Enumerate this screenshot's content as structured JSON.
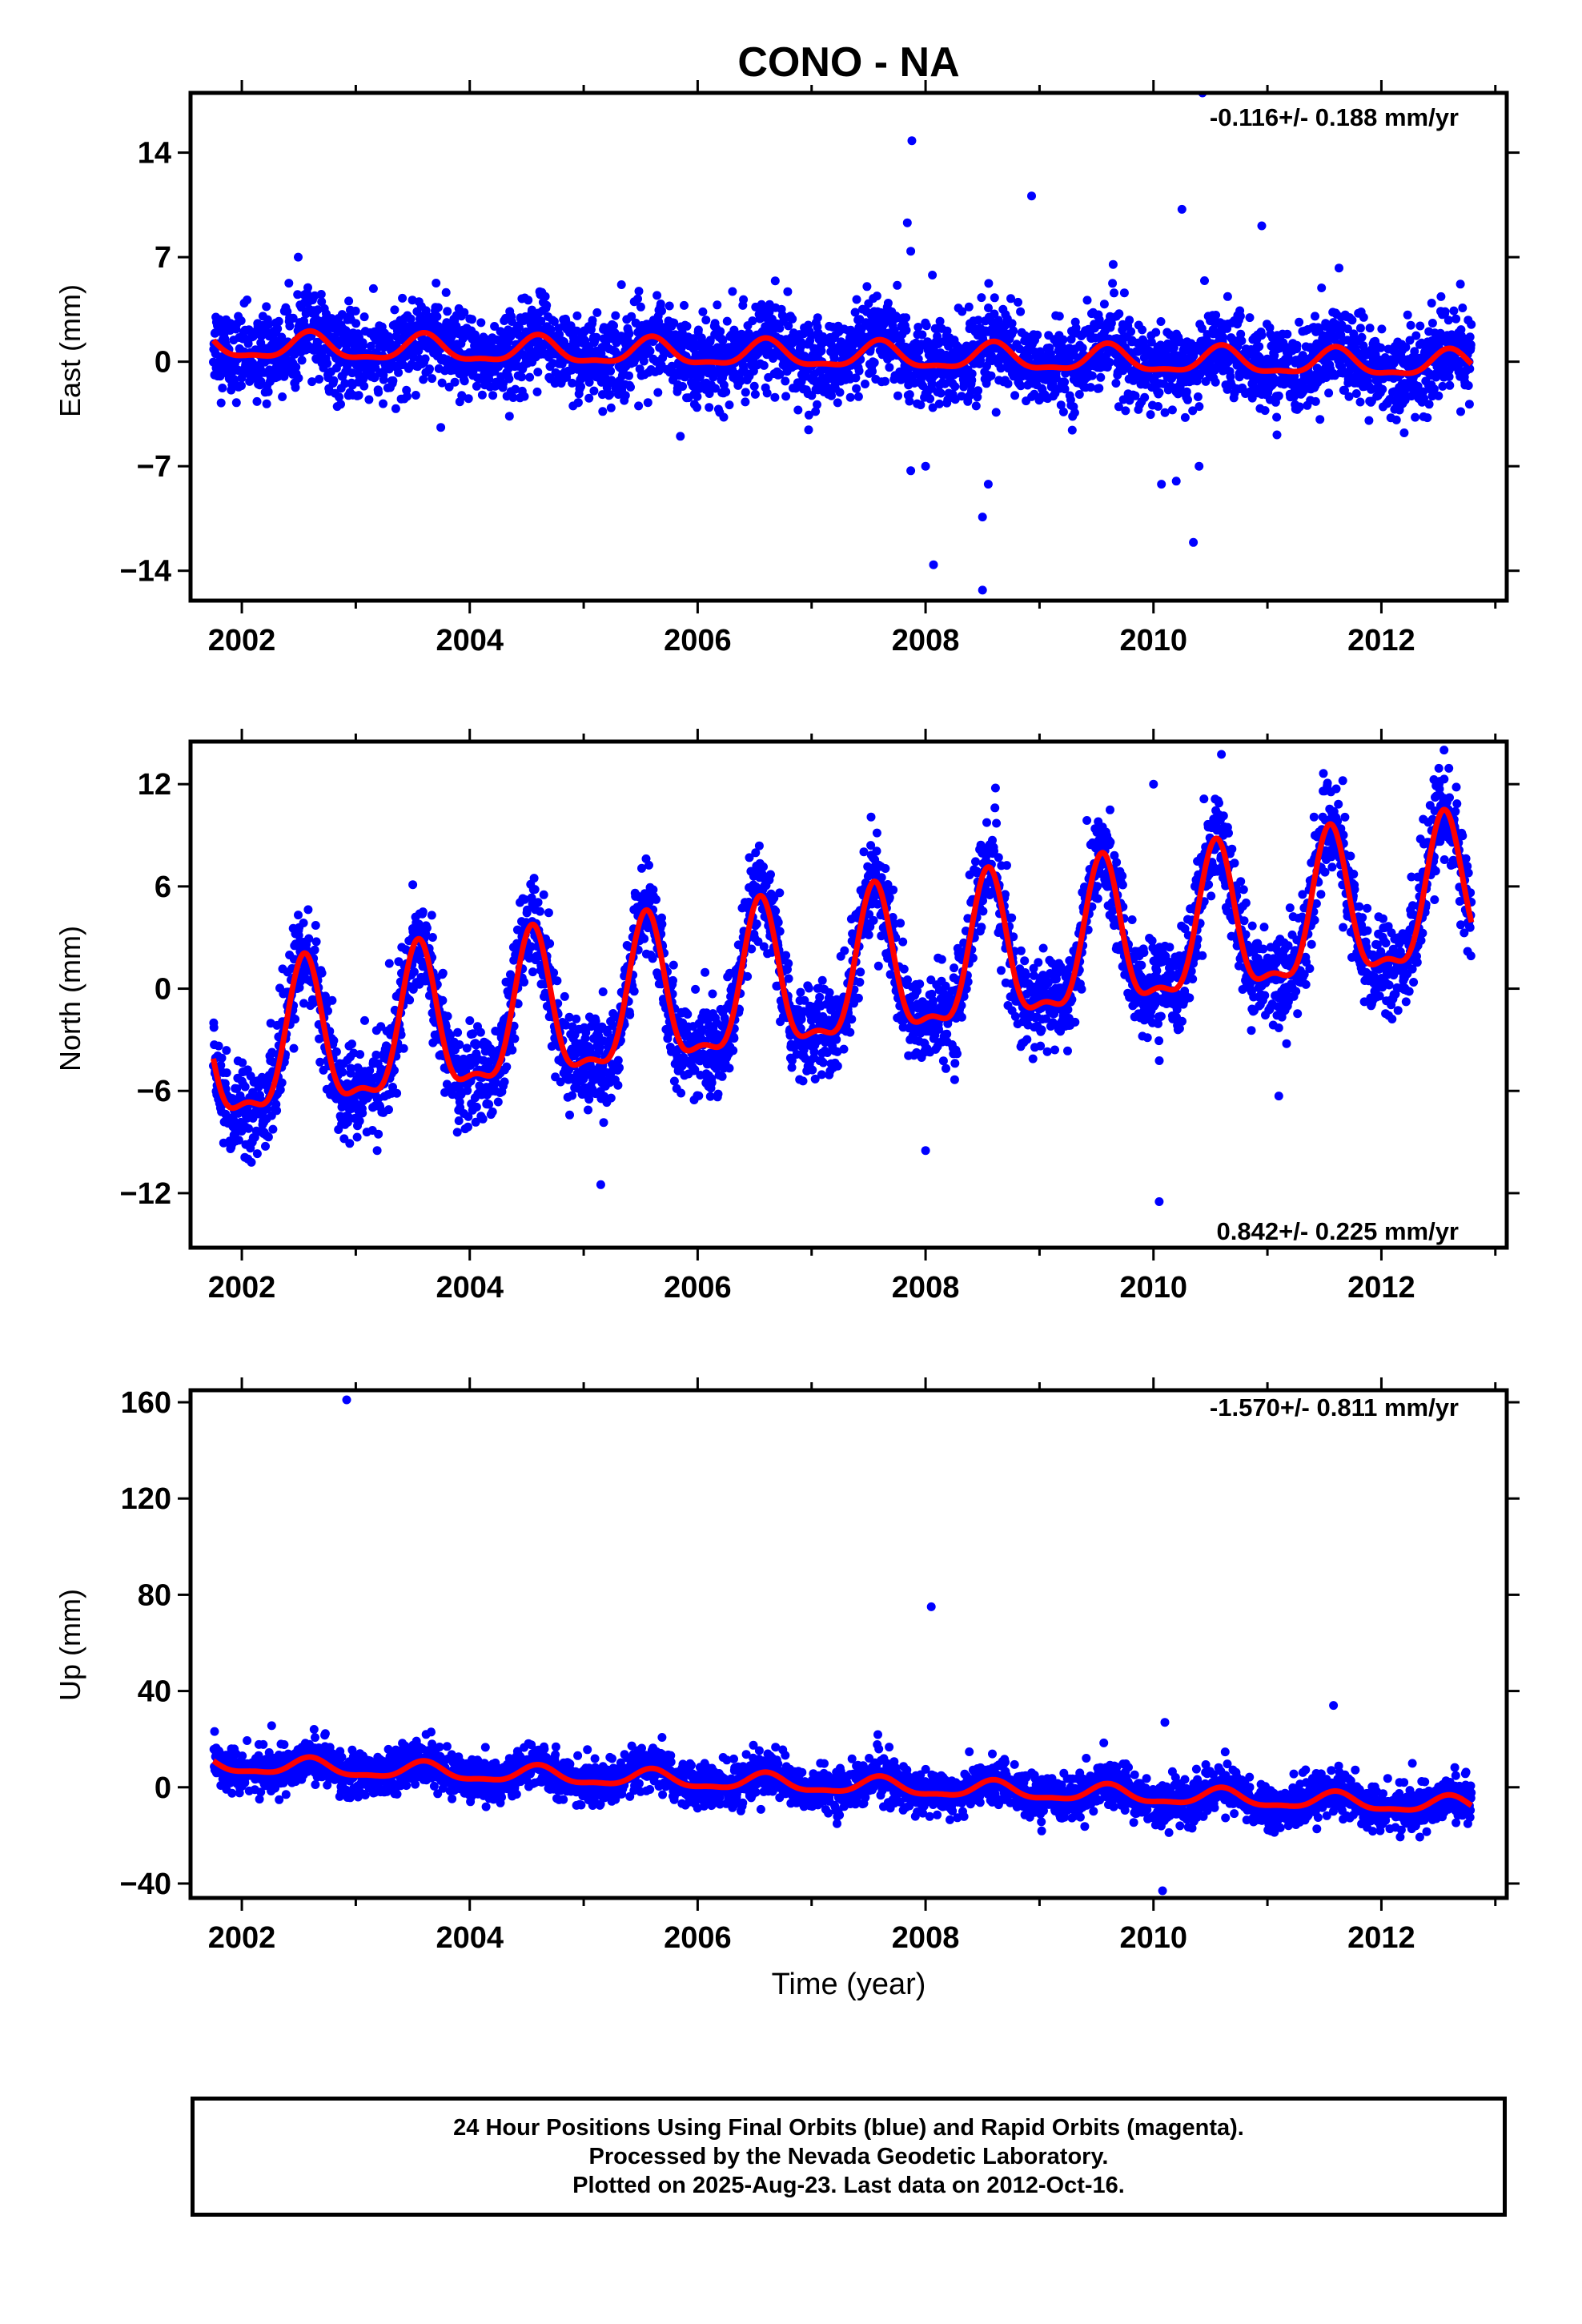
{
  "figure_title": "CONO - NA",
  "colors": {
    "points": "#0000ff",
    "fit": "#ff0000",
    "axis": "#000000",
    "background": "#ffffff"
  },
  "chart_data": [
    {
      "type": "scatter",
      "panel": "east",
      "title": "",
      "xlabel": "",
      "ylabel": "East (mm)",
      "xlim": [
        2001.55,
        2013.1
      ],
      "ylim": [
        -16,
        18
      ],
      "xticks": [
        2002,
        2004,
        2006,
        2008,
        2010,
        2012
      ],
      "yticks": [
        14,
        7,
        0,
        -7,
        -14
      ],
      "ytick_labels": [
        "14",
        "7",
        "0",
        "−7",
        "−14"
      ],
      "rate_label": "-0.116+/- 0.188 mm/yr",
      "rate_label_position": "top-right",
      "fit": {
        "baseline": 1.0,
        "trend_per_year": -0.116,
        "annual_amplitude": 1.0,
        "annual_phase_peak": 0.6
      },
      "noise_sd": 1.4,
      "outliers": [
        [
          2010.43,
          18.0
        ],
        [
          2007.88,
          14.8
        ],
        [
          2008.93,
          11.1
        ],
        [
          2010.25,
          10.2
        ],
        [
          2010.95,
          9.1
        ],
        [
          2007.84,
          9.3
        ],
        [
          2007.87,
          7.4
        ],
        [
          2008.06,
          5.8
        ],
        [
          2007.87,
          -7.3
        ],
        [
          2008.0,
          -7.0
        ],
        [
          2008.07,
          -13.6
        ],
        [
          2008.5,
          -15.3
        ],
        [
          2008.5,
          -10.4
        ],
        [
          2008.55,
          -8.2
        ],
        [
          2010.07,
          -8.2
        ],
        [
          2010.2,
          -8.0
        ],
        [
          2010.35,
          -12.1
        ],
        [
          2010.4,
          -7.0
        ]
      ]
    },
    {
      "type": "scatter",
      "panel": "north",
      "title": "",
      "xlabel": "",
      "ylabel": "North (mm)",
      "xlim": [
        2001.55,
        2013.1
      ],
      "ylim": [
        -15.2,
        14.5
      ],
      "xticks": [
        2002,
        2004,
        2006,
        2008,
        2010,
        2012
      ],
      "yticks": [
        12,
        6,
        0,
        -6,
        -12
      ],
      "ytick_labels": [
        "12",
        "6",
        "0",
        "−6",
        "−12"
      ],
      "rate_label": "0.842+/- 0.225 mm/yr",
      "rate_label_position": "bottom-right",
      "fit": {
        "baseline": -4.0,
        "trend_per_year": 0.842,
        "annual_amplitude": 5.0,
        "annual_phase_peak": 0.55
      },
      "noise_sd": 1.4,
      "outliers": [
        [
          2012.55,
          14.0
        ],
        [
          2010.05,
          -12.5
        ],
        [
          2008.0,
          -9.5
        ],
        [
          2005.15,
          -11.5
        ],
        [
          2010.0,
          12.0
        ],
        [
          2003.5,
          6.1
        ],
        [
          2011.1,
          -6.3
        ]
      ]
    },
    {
      "type": "scatter",
      "panel": "up",
      "title": "",
      "xlabel": "Time (year)",
      "ylabel": "Up (mm)",
      "xlim": [
        2001.55,
        2013.1
      ],
      "ylim": [
        -46,
        165
      ],
      "xticks": [
        2002,
        2004,
        2006,
        2008,
        2010,
        2012
      ],
      "yticks": [
        160,
        120,
        80,
        40,
        0,
        -40
      ],
      "ytick_labels": [
        "160",
        "120",
        "80",
        "40",
        "0",
        "−40"
      ],
      "rate_label": "-1.570+/- 0.811 mm/yr",
      "rate_label_position": "top-right",
      "fit": {
        "baseline": 9.0,
        "trend_per_year": -1.57,
        "annual_amplitude": 4.0,
        "annual_phase_peak": 0.6
      },
      "noise_sd": 4.5,
      "outliers": [
        [
          2002.92,
          161.0
        ],
        [
          2008.05,
          75.0
        ],
        [
          2010.08,
          -43.0
        ],
        [
          2010.1,
          27.0
        ],
        [
          2011.58,
          34.0
        ]
      ]
    }
  ],
  "footer": {
    "line1": "24 Hour Positions Using Final Orbits (blue) and Rapid Orbits (magenta).",
    "line2": "Processed by the Nevada Geodetic Laboratory.",
    "line3": "Plotted on 2025-Aug-23. Last data on 2012-Oct-16."
  }
}
